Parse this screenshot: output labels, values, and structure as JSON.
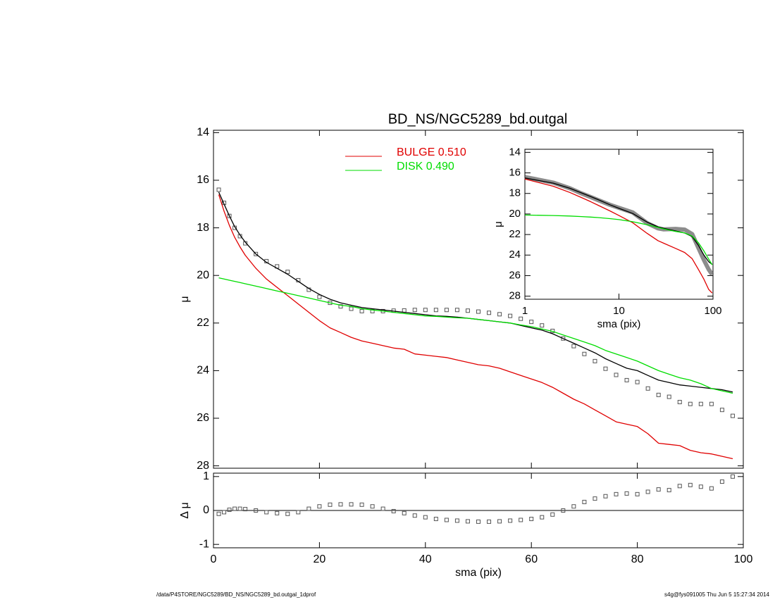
{
  "chart_data": [
    {
      "type": "line",
      "title": "BD_NS/NGC5289_bd.outgal",
      "ylabel": "μ",
      "x": [
        1,
        2,
        3,
        4,
        5,
        6,
        8,
        10,
        12,
        14,
        16,
        18,
        20,
        22,
        24,
        26,
        28,
        30,
        32,
        34,
        36,
        38,
        40,
        42,
        44,
        46,
        48,
        50,
        52,
        54,
        56,
        58,
        60,
        62,
        64,
        66,
        68,
        70,
        72,
        74,
        76,
        78,
        80,
        82,
        84,
        86,
        88,
        90,
        92,
        94,
        96,
        98
      ],
      "xlim": [
        0,
        100
      ],
      "xticks": [
        0,
        20,
        40,
        60,
        80,
        100
      ],
      "xticklabels": false,
      "ylim": [
        28.1,
        13.9
      ],
      "yticks": [
        14,
        16,
        18,
        20,
        22,
        24,
        26,
        28
      ],
      "series": [
        {
          "mark": "square",
          "color": "#555555",
          "values": [
            16.4,
            16.95,
            17.5,
            18.0,
            18.35,
            18.65,
            19.1,
            19.4,
            19.62,
            19.85,
            20.2,
            20.6,
            20.9,
            21.15,
            21.3,
            21.4,
            21.5,
            21.5,
            21.5,
            21.48,
            21.47,
            21.45,
            21.45,
            21.45,
            21.45,
            21.45,
            21.48,
            21.52,
            21.57,
            21.63,
            21.7,
            21.82,
            21.95,
            22.1,
            22.33,
            22.65,
            22.97,
            23.3,
            23.6,
            23.92,
            24.18,
            24.4,
            24.48,
            24.75,
            25.02,
            25.1,
            25.32,
            25.4,
            25.4,
            25.4,
            25.65,
            25.9
          ]
        },
        {
          "mark": "line",
          "color": "#000000",
          "values": [
            16.5,
            17.0,
            17.5,
            17.95,
            18.3,
            18.6,
            19.1,
            19.45,
            19.7,
            19.95,
            20.25,
            20.55,
            20.8,
            21.0,
            21.15,
            21.25,
            21.35,
            21.4,
            21.45,
            21.5,
            21.55,
            21.6,
            21.65,
            21.7,
            21.72,
            21.75,
            21.8,
            21.85,
            21.9,
            21.95,
            22.0,
            22.1,
            22.2,
            22.3,
            22.45,
            22.65,
            22.85,
            23.05,
            23.25,
            23.5,
            23.7,
            23.9,
            24.0,
            24.2,
            24.4,
            24.5,
            24.6,
            24.65,
            24.7,
            24.75,
            24.8,
            24.9
          ]
        },
        {
          "name": "BULGE  0.510",
          "mark": "line",
          "color": "#e00000",
          "values": [
            16.6,
            17.3,
            17.9,
            18.4,
            18.8,
            19.15,
            19.7,
            20.15,
            20.5,
            20.85,
            21.2,
            21.55,
            21.9,
            22.2,
            22.4,
            22.6,
            22.75,
            22.85,
            22.95,
            23.05,
            23.1,
            23.3,
            23.35,
            23.4,
            23.45,
            23.55,
            23.65,
            23.75,
            23.8,
            23.9,
            24.05,
            24.2,
            24.35,
            24.5,
            24.7,
            24.95,
            25.2,
            25.4,
            25.65,
            25.9,
            26.15,
            26.25,
            26.35,
            26.65,
            27.05,
            27.1,
            27.15,
            27.35,
            27.45,
            27.5,
            27.6,
            27.7
          ]
        },
        {
          "name": "DISK  0.490",
          "mark": "line",
          "color": "#00dd00",
          "values": [
            20.1,
            20.15,
            20.2,
            20.25,
            20.3,
            20.35,
            20.45,
            20.55,
            20.65,
            20.75,
            20.85,
            20.95,
            21.05,
            21.15,
            21.25,
            21.3,
            21.4,
            21.45,
            21.5,
            21.55,
            21.6,
            21.65,
            21.7,
            21.72,
            21.75,
            21.78,
            21.8,
            21.85,
            21.9,
            21.95,
            22.0,
            22.08,
            22.15,
            22.25,
            22.35,
            22.5,
            22.65,
            22.8,
            22.95,
            23.15,
            23.3,
            23.45,
            23.6,
            23.8,
            24.0,
            24.15,
            24.3,
            24.4,
            24.55,
            24.75,
            24.85,
            24.95
          ]
        }
      ]
    },
    {
      "type": "line",
      "xlabel": "sma (pix)",
      "ylabel": "μ",
      "xlog": true,
      "x": [
        1,
        2,
        3,
        4,
        5,
        6,
        8,
        10,
        14,
        20,
        26,
        30,
        40,
        50,
        60,
        70,
        80,
        90,
        98
      ],
      "xlim": [
        1,
        100
      ],
      "xticks": [
        1,
        10,
        100
      ],
      "xticklabels": true,
      "ylim": [
        28.3,
        13.7
      ],
      "yticks": [
        14,
        16,
        18,
        20,
        22,
        24,
        26,
        28
      ],
      "series": [
        {
          "mark": "thick",
          "color": "#666666",
          "values": [
            16.4,
            16.95,
            17.5,
            18.0,
            18.35,
            18.65,
            19.1,
            19.4,
            19.85,
            20.9,
            21.4,
            21.5,
            21.45,
            21.52,
            21.95,
            23.3,
            24.48,
            25.4,
            25.9
          ]
        },
        {
          "mark": "line",
          "color": "#000000",
          "values": [
            16.5,
            17.0,
            17.5,
            17.95,
            18.3,
            18.6,
            19.1,
            19.45,
            19.95,
            20.8,
            21.25,
            21.4,
            21.65,
            21.85,
            22.2,
            23.05,
            24.0,
            24.65,
            24.9
          ]
        },
        {
          "mark": "line",
          "color": "#e00000",
          "values": [
            16.6,
            17.3,
            17.9,
            18.4,
            18.8,
            19.15,
            19.7,
            20.15,
            20.85,
            21.9,
            22.6,
            22.85,
            23.35,
            23.75,
            24.35,
            25.4,
            26.35,
            27.35,
            27.7
          ]
        },
        {
          "mark": "line",
          "color": "#00dd00",
          "values": [
            20.1,
            20.15,
            20.2,
            20.25,
            20.3,
            20.35,
            20.45,
            20.55,
            20.75,
            21.05,
            21.3,
            21.45,
            21.7,
            21.85,
            22.15,
            22.8,
            23.6,
            24.4,
            24.95
          ]
        }
      ]
    },
    {
      "type": "scatter",
      "xlabel": "sma (pix)",
      "ylabel": "Δ μ",
      "x": [
        1,
        2,
        3,
        4,
        5,
        6,
        8,
        10,
        12,
        14,
        16,
        18,
        20,
        22,
        24,
        26,
        28,
        30,
        32,
        34,
        36,
        38,
        40,
        42,
        44,
        46,
        48,
        50,
        52,
        54,
        56,
        58,
        60,
        62,
        64,
        66,
        68,
        70,
        72,
        74,
        76,
        78,
        80,
        82,
        84,
        86,
        88,
        90,
        92,
        94,
        96,
        98
      ],
      "xlim": [
        0,
        100
      ],
      "xticks": [
        0,
        20,
        40,
        60,
        80,
        100
      ],
      "xticklabels": true,
      "ylim": [
        -1.1,
        1.1
      ],
      "yticks": [
        -1,
        0,
        1
      ],
      "zero_line": true,
      "series": [
        {
          "mark": "square",
          "color": "#555555",
          "values": [
            -0.1,
            -0.05,
            0.02,
            0.05,
            0.05,
            0.04,
            0.0,
            -0.05,
            -0.08,
            -0.1,
            -0.05,
            0.05,
            0.12,
            0.17,
            0.18,
            0.18,
            0.17,
            0.12,
            0.05,
            -0.02,
            -0.08,
            -0.15,
            -0.2,
            -0.25,
            -0.28,
            -0.3,
            -0.32,
            -0.33,
            -0.33,
            -0.32,
            -0.3,
            -0.28,
            -0.25,
            -0.2,
            -0.12,
            0.0,
            0.12,
            0.25,
            0.35,
            0.42,
            0.48,
            0.5,
            0.48,
            0.55,
            0.62,
            0.6,
            0.72,
            0.75,
            0.7,
            0.65,
            0.85,
            1.0
          ]
        }
      ]
    }
  ],
  "footer": {
    "left": "/data/P4STORE/NGC5289/BD_NS/NGC5289_bd.outgal_1dprof",
    "right": "s4g@fys091005  Thu Jun  5 15:27:34 2014"
  }
}
